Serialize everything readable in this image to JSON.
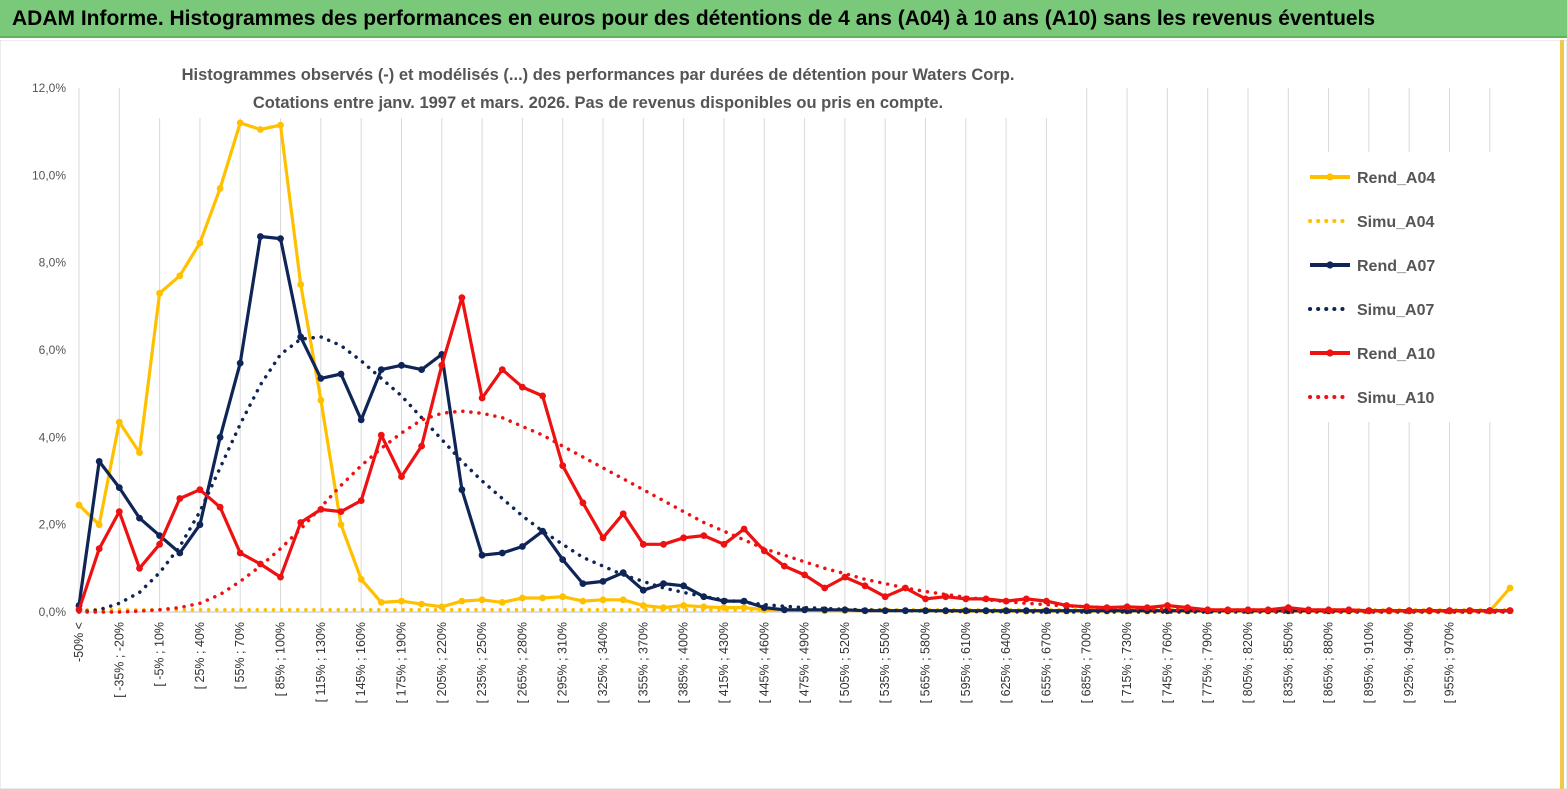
{
  "banner": {
    "title": "ADAM Informe. Histogrammes des performances en euros pour des détentions de 4 ans (A04) à 10 ans (A10) sans les revenus éventuels"
  },
  "chart_data": {
    "type": "line",
    "title_line1": "Histogrammes observés (-) et modélisés (...) des performances par durées de détention pour Waters Corp.",
    "title_line2": "Cotations entre janv. 1997 et mars. 2026. Pas de revenus disponibles ou pris en compte.",
    "ylim": [
      0,
      12
    ],
    "y_ticks": [
      "0,0%",
      "2,0%",
      "4,0%",
      "6,0%",
      "8,0%",
      "10,0%",
      "12,0%"
    ],
    "x_tick_labels": [
      "-50% <",
      "[ -35% ; -20%",
      "[ -5% ; 10%",
      "[ 25% ; 40%",
      "[ 55% ; 70%",
      "[ 85% ; 100%",
      "[ 115% ; 130%",
      "[ 145% ; 160%",
      "[ 175% ; 190%",
      "[ 205% ; 220%",
      "[ 235% ; 250%",
      "[ 265% ; 280%",
      "[ 295% ; 310%",
      "[ 325% ; 340%",
      "[ 355% ; 370%",
      "[ 385% ; 400%",
      "[ 415% ; 430%",
      "[ 445% ; 460%",
      "[ 475% ; 490%",
      "[ 505% ; 520%",
      "[ 535% ; 550%",
      "[ 565% ; 580%",
      "[ 595% ; 610%",
      "[ 625% ; 640%",
      "[ 655% ; 670%",
      "[ 685% ; 700%",
      "[ 715% ; 730%",
      "[ 745% ; 760%",
      "[ 775% ; 790%",
      "[ 805% ; 820%",
      "[ 835% ; 850%",
      "[ 865% ; 880%",
      "[ 895% ; 910%",
      "[ 925% ; 940%",
      "[ 955% ; 970%"
    ],
    "series": [
      {
        "name": "Rend_A04",
        "color": "#ffc000",
        "style": "solid",
        "values": [
          2.45,
          2.0,
          4.35,
          3.65,
          7.3,
          7.7,
          8.45,
          9.7,
          11.2,
          11.05,
          11.15,
          7.5,
          4.85,
          2.0,
          0.75,
          0.22,
          0.25,
          0.18,
          0.12,
          0.25,
          0.28,
          0.22,
          0.32,
          0.32,
          0.35,
          0.25,
          0.28,
          0.28,
          0.15,
          0.1,
          0.15,
          0.12,
          0.1,
          0.1,
          0.05,
          0.05,
          0.05,
          0.03,
          0.03,
          0.03,
          0.03,
          0.03,
          0.03,
          0.02,
          0.02,
          0.02,
          0.02,
          0.02,
          0.02,
          0.02,
          0.02,
          0.02,
          0.02,
          0.02,
          0.02,
          0.02,
          0.02,
          0.02,
          0.02,
          0.02,
          0.02,
          0.02,
          0.02,
          0.02,
          0.02,
          0.02,
          0.02,
          0.02,
          0.02,
          0.02,
          0.02,
          0.55
        ]
      },
      {
        "name": "Simu_A04",
        "color": "#ffc000",
        "style": "dotted",
        "values": [
          0.05,
          0.05,
          0.05,
          0.05,
          0.05,
          0.05,
          0.05,
          0.05,
          0.05,
          0.05,
          0.05,
          0.05,
          0.05,
          0.05,
          0.05,
          0.05,
          0.05,
          0.05,
          0.05,
          0.05,
          0.05,
          0.05,
          0.05,
          0.05,
          0.05,
          0.05,
          0.05,
          0.05,
          0.05,
          0.05,
          0.05,
          0.05,
          0.05,
          0.05,
          0.05,
          0.05,
          0.05,
          0.05,
          0.05,
          0.05,
          0.05,
          0.05,
          0.05,
          0.05,
          0.05,
          0.05,
          0.05,
          0.05,
          0.05,
          0.05,
          0.05,
          0.05,
          0.05,
          0.05,
          0.05,
          0.05,
          0.05,
          0.05,
          0.05,
          0.05,
          0.05,
          0.05,
          0.05,
          0.05,
          0.05,
          0.05,
          0.05,
          0.05,
          0.05,
          0.05,
          0.05,
          0.05
        ]
      },
      {
        "name": "Rend_A07",
        "color": "#0f2557",
        "style": "solid",
        "values": [
          0.15,
          3.45,
          2.85,
          2.15,
          1.75,
          1.35,
          2.0,
          4.0,
          5.7,
          8.6,
          8.55,
          6.3,
          5.35,
          5.45,
          4.4,
          5.55,
          5.65,
          5.55,
          5.9,
          2.8,
          1.3,
          1.35,
          1.5,
          1.85,
          1.2,
          0.65,
          0.7,
          0.9,
          0.5,
          0.65,
          0.6,
          0.35,
          0.25,
          0.25,
          0.1,
          0.05,
          0.05,
          0.05,
          0.05,
          0.03,
          0.03,
          0.03,
          0.03,
          0.03,
          0.03,
          0.03,
          0.03,
          0.03,
          0.03,
          0.03,
          0.03,
          0.03,
          0.03,
          0.03,
          0.03,
          0.03,
          0.03,
          0.03,
          0.03,
          0.03,
          0.03,
          0.03,
          0.03,
          0.03,
          0.03,
          0.03,
          0.03,
          0.03,
          0.03,
          0.03,
          0.03,
          0.03
        ]
      },
      {
        "name": "Simu_A07",
        "color": "#0f2557",
        "style": "dotted",
        "values": [
          0.0,
          0.05,
          0.2,
          0.45,
          0.9,
          1.5,
          2.3,
          3.3,
          4.3,
          5.2,
          5.9,
          6.25,
          6.3,
          6.1,
          5.75,
          5.35,
          4.95,
          4.45,
          3.95,
          3.45,
          3.0,
          2.6,
          2.2,
          1.85,
          1.55,
          1.25,
          1.05,
          0.85,
          0.7,
          0.55,
          0.45,
          0.35,
          0.28,
          0.22,
          0.17,
          0.13,
          0.1,
          0.08,
          0.06,
          0.05,
          0.04,
          0.03,
          0.02,
          0.02,
          0.01,
          0.01,
          0.01,
          0.0,
          0.0,
          0.0,
          0.0,
          0.0,
          0.0,
          0.0,
          0.0,
          0.0,
          0.0,
          0.0,
          0.0,
          0.0,
          0.0,
          0.0,
          0.0,
          0.0,
          0.0,
          0.0,
          0.0,
          0.0,
          0.0,
          0.0,
          0.0,
          0.0
        ]
      },
      {
        "name": "Rend_A10",
        "color": "#ee1111",
        "style": "solid",
        "values": [
          0.05,
          1.45,
          2.3,
          1.0,
          1.55,
          2.6,
          2.8,
          2.4,
          1.35,
          1.1,
          0.8,
          2.05,
          2.35,
          2.3,
          2.55,
          4.05,
          3.1,
          3.8,
          5.65,
          7.2,
          4.9,
          5.55,
          5.15,
          4.95,
          3.35,
          2.5,
          1.7,
          2.25,
          1.55,
          1.55,
          1.7,
          1.75,
          1.55,
          1.9,
          1.4,
          1.05,
          0.85,
          0.55,
          0.8,
          0.6,
          0.35,
          0.55,
          0.3,
          0.35,
          0.3,
          0.3,
          0.25,
          0.3,
          0.25,
          0.15,
          0.12,
          0.1,
          0.12,
          0.1,
          0.15,
          0.1,
          0.05,
          0.05,
          0.05,
          0.05,
          0.1,
          0.05,
          0.05,
          0.05,
          0.03,
          0.03,
          0.03,
          0.03,
          0.03,
          0.03,
          0.03,
          0.03
        ]
      },
      {
        "name": "Simu_A10",
        "color": "#ee1111",
        "style": "dotted",
        "values": [
          0.0,
          0.0,
          0.0,
          0.02,
          0.05,
          0.1,
          0.2,
          0.4,
          0.7,
          1.05,
          1.45,
          1.9,
          2.4,
          2.9,
          3.35,
          3.75,
          4.1,
          4.4,
          4.55,
          4.6,
          4.55,
          4.45,
          4.25,
          4.05,
          3.8,
          3.55,
          3.3,
          3.05,
          2.8,
          2.55,
          2.3,
          2.05,
          1.85,
          1.65,
          1.45,
          1.3,
          1.15,
          1.0,
          0.88,
          0.75,
          0.65,
          0.55,
          0.47,
          0.4,
          0.34,
          0.28,
          0.24,
          0.2,
          0.17,
          0.14,
          0.12,
          0.1,
          0.08,
          0.07,
          0.06,
          0.05,
          0.04,
          0.03,
          0.03,
          0.02,
          0.02,
          0.02,
          0.01,
          0.01,
          0.01,
          0.01,
          0.01,
          0.01,
          0.01,
          0.01,
          0.01,
          0.01
        ]
      }
    ]
  }
}
